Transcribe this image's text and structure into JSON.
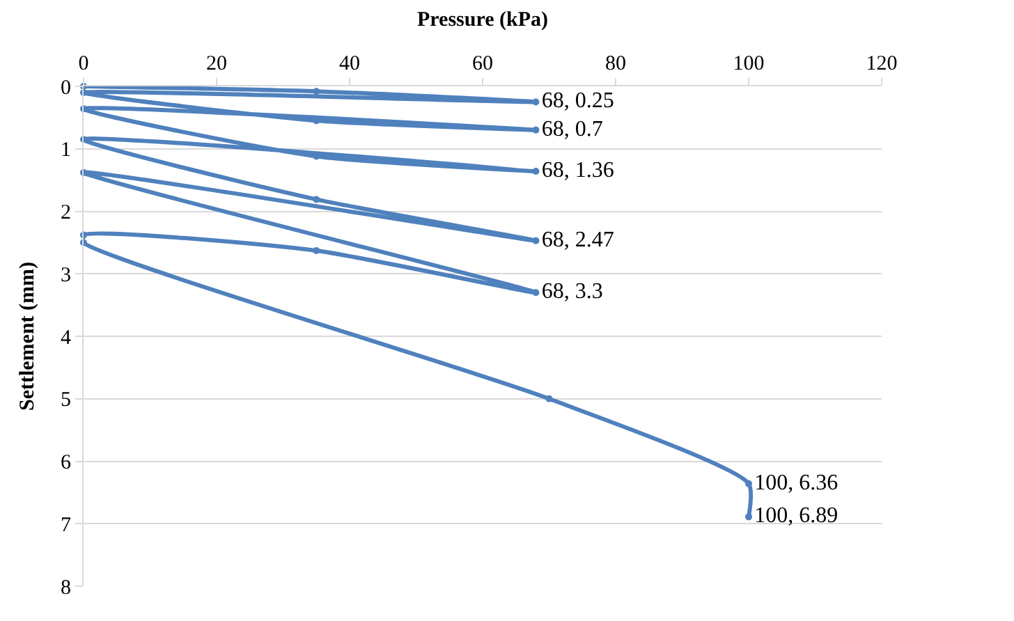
{
  "chart_data": {
    "type": "line",
    "xlabel": "Pressure (kPa)",
    "ylabel": "Settlement (mm)",
    "x": [
      0,
      35,
      68,
      0,
      35,
      68,
      0,
      35,
      68,
      0,
      35,
      68,
      0,
      68,
      35,
      0,
      0,
      70,
      100,
      100
    ],
    "series": [
      {
        "color": "#4f81bd",
        "values": [
          0,
          0.08,
          0.25,
          0.1,
          0.55,
          0.7,
          0.36,
          1.12,
          1.36,
          0.85,
          1.81,
          2.47,
          1.38,
          3.3,
          2.63,
          2.38,
          2.5,
          5.0,
          6.36,
          6.89
        ],
        "value_labels": [
          null,
          null,
          "68, 0.25",
          null,
          null,
          "68, 0.7",
          null,
          null,
          "68, 1.36",
          null,
          null,
          "68, 2.47",
          null,
          "68, 3.3",
          null,
          null,
          null,
          null,
          "100, 6.36",
          "100, 6.89"
        ]
      }
    ],
    "xlim": [
      0,
      120
    ],
    "xticks": [
      0,
      20,
      40,
      60,
      80,
      100,
      120
    ],
    "ylim": [
      8,
      0
    ],
    "yticks": [
      0,
      1,
      2,
      3,
      4,
      5,
      6,
      7,
      8
    ],
    "grid": "y",
    "marker": "circle",
    "line_style": "solid"
  }
}
